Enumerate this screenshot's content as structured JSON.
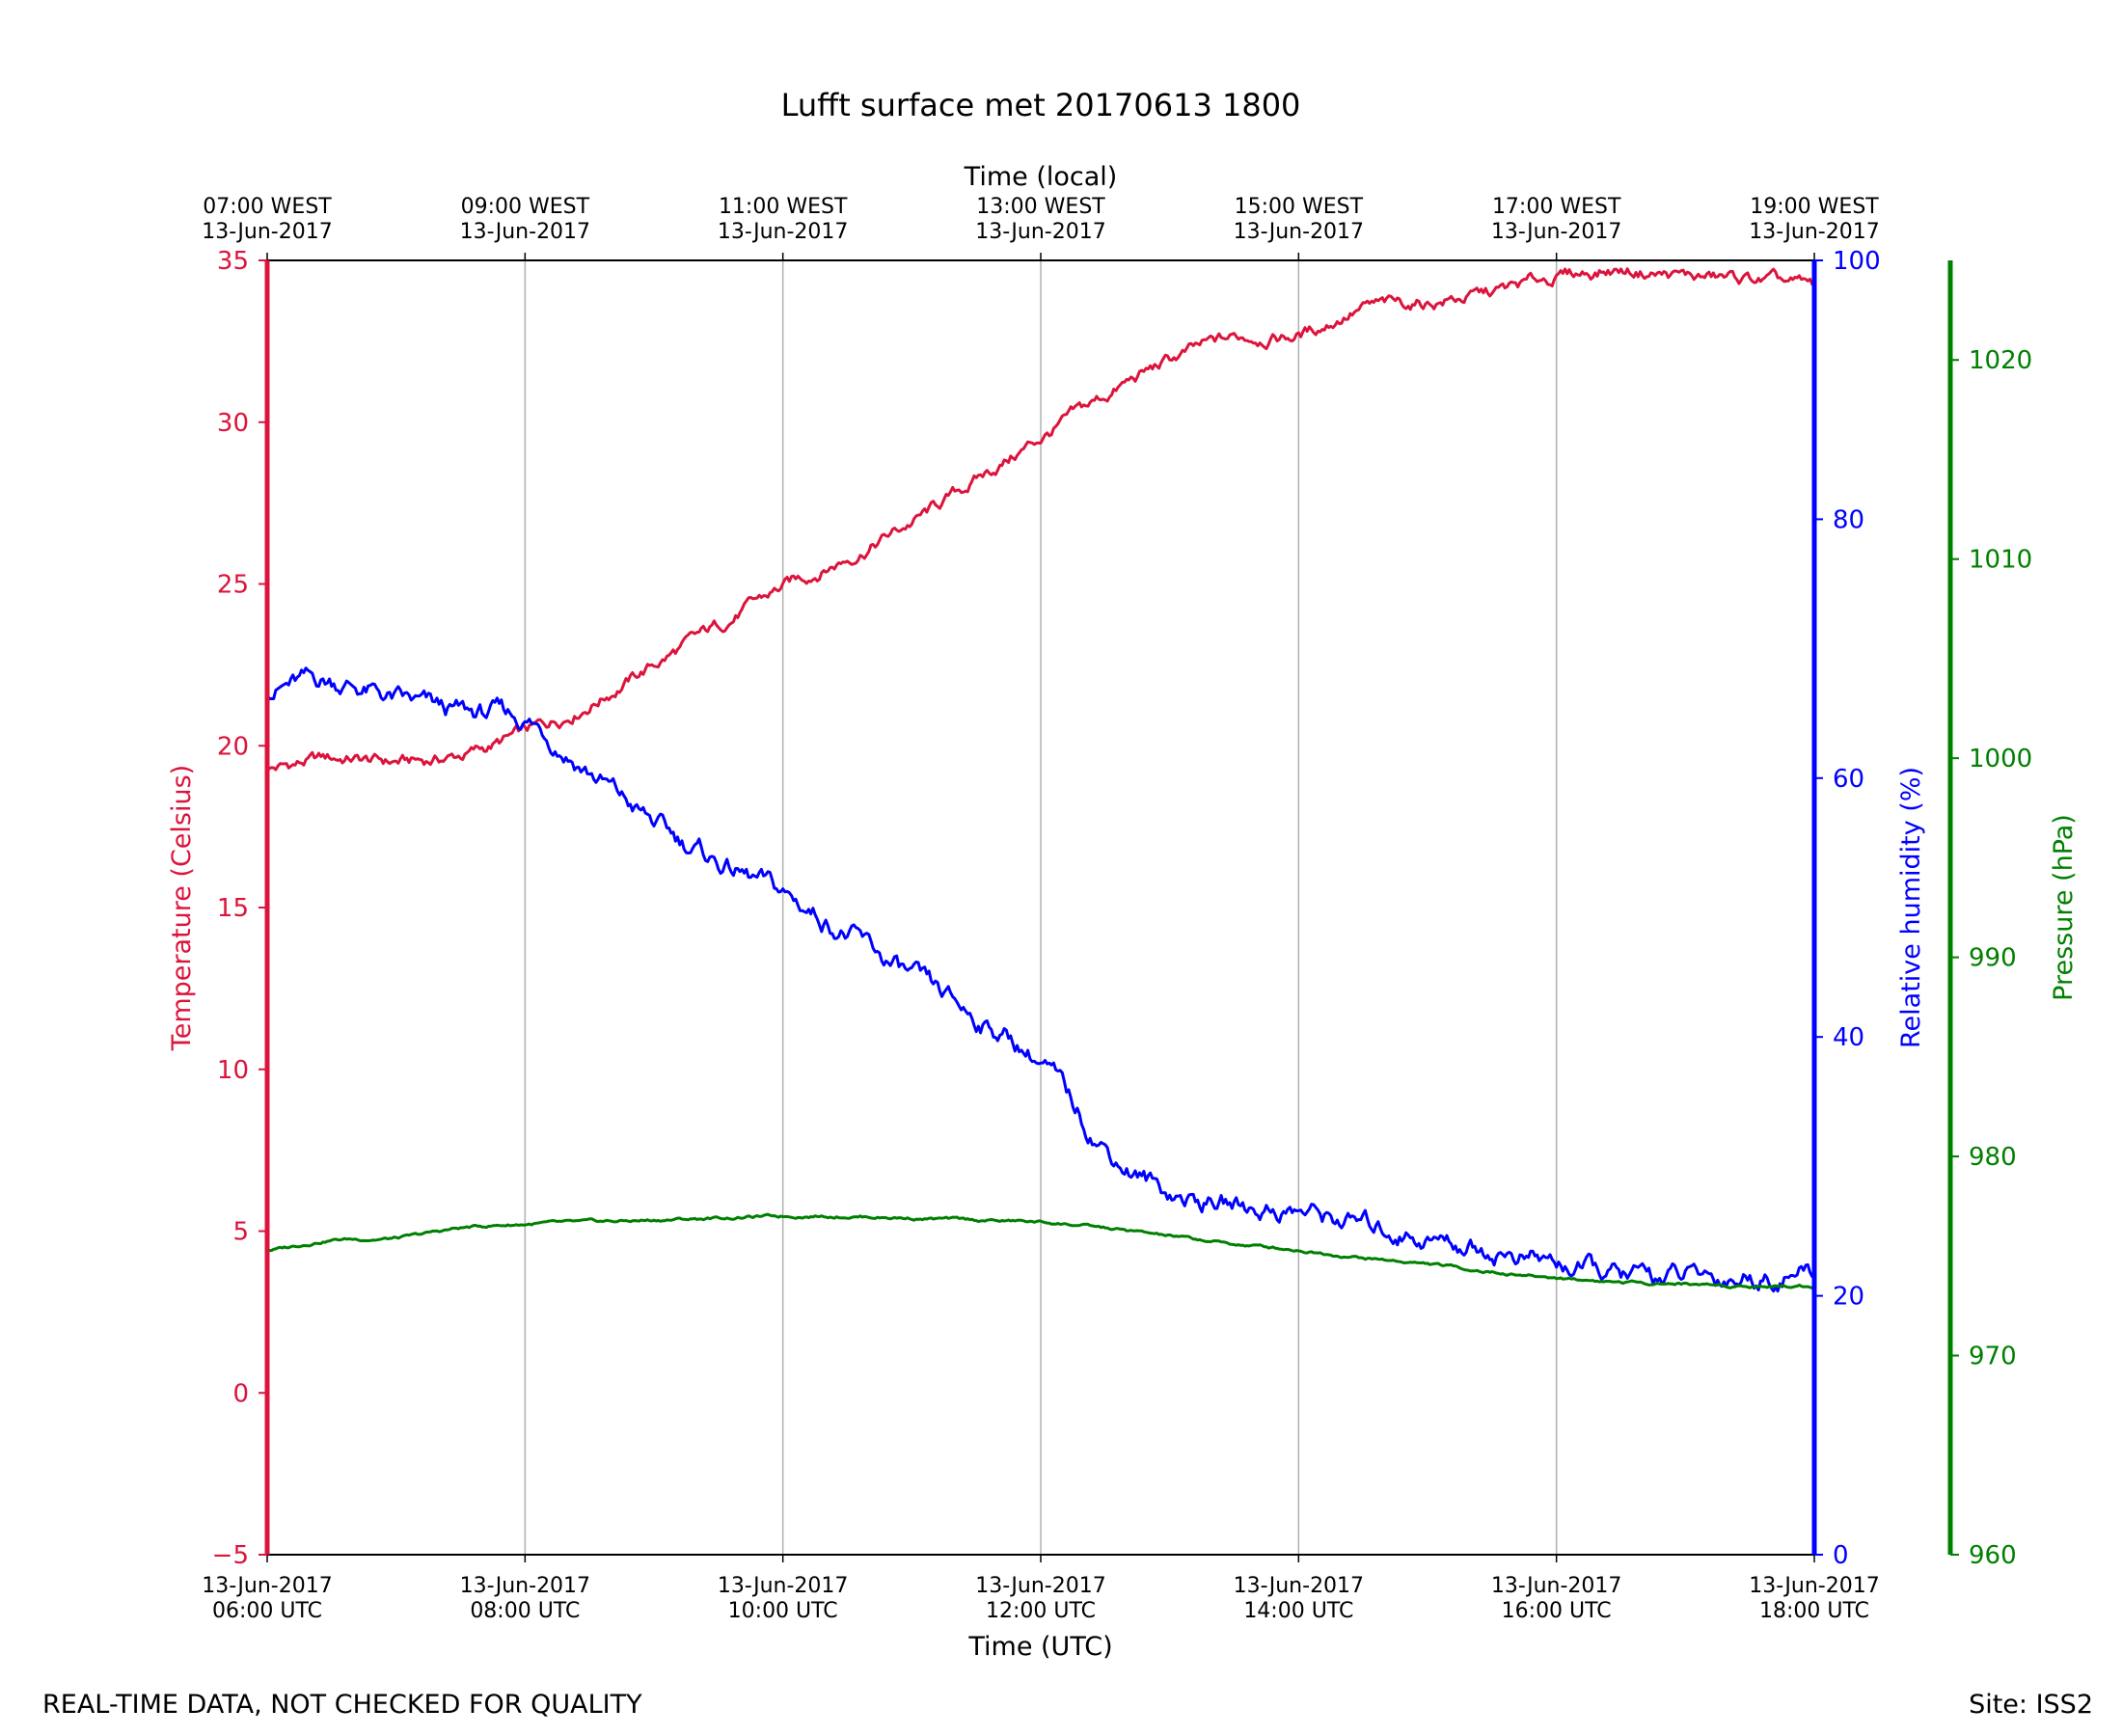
{
  "footer": {
    "left": "REAL-TIME DATA, NOT CHECKED FOR QUALITY",
    "right": "Site: ISS2"
  },
  "chart_data": {
    "type": "line",
    "title": "Lufft surface met 20170613 1800",
    "xlabel": "Time (UTC)",
    "x2label": "Time (local)",
    "x_ticks": [
      {
        "date": "13-Jun-2017",
        "utc": "06:00 UTC",
        "local": "07:00 WEST"
      },
      {
        "date": "13-Jun-2017",
        "utc": "08:00 UTC",
        "local": "09:00 WEST"
      },
      {
        "date": "13-Jun-2017",
        "utc": "10:00 UTC",
        "local": "11:00 WEST"
      },
      {
        "date": "13-Jun-2017",
        "utc": "12:00 UTC",
        "local": "13:00 WEST"
      },
      {
        "date": "13-Jun-2017",
        "utc": "14:00 UTC",
        "local": "15:00 WEST"
      },
      {
        "date": "13-Jun-2017",
        "utc": "16:00 UTC",
        "local": "17:00 WEST"
      },
      {
        "date": "13-Jun-2017",
        "utc": "18:00 UTC",
        "local": "19:00 WEST"
      }
    ],
    "xlim": [
      "2017-06-13 06:00 UTC",
      "2017-06-13 18:00 UTC"
    ],
    "x_grid": true,
    "axes": {
      "temperature": {
        "label": "Temperature (Celsius)",
        "range": [
          -5,
          35
        ],
        "ticks": [
          -5,
          0,
          5,
          10,
          15,
          20,
          25,
          30,
          35
        ],
        "color": "#DC143C",
        "side": "left"
      },
      "humidity": {
        "label": "Relative humidity (%)",
        "range": [
          0,
          100
        ],
        "ticks": [
          0,
          20,
          40,
          60,
          80,
          100
        ],
        "color": "#0000FF",
        "side": "right"
      },
      "pressure": {
        "label": "Pressure (hPa)",
        "range": [
          960,
          1025
        ],
        "ticks": [
          960,
          970,
          980,
          990,
          1000,
          1010,
          1020
        ],
        "color": "#008000",
        "side": "right-outer"
      }
    },
    "x": [
      "06:00",
      "06:30",
      "07:00",
      "07:30",
      "08:00",
      "08:30",
      "09:00",
      "09:30",
      "10:00",
      "10:30",
      "11:00",
      "11:30",
      "12:00",
      "12:30",
      "13:00",
      "13:30",
      "14:00",
      "14:30",
      "15:00",
      "15:30",
      "16:00",
      "16:30",
      "17:00",
      "17:30",
      "18:00"
    ],
    "series": [
      {
        "axis": "temperature",
        "color": "#DC143C",
        "values": [
          19.3,
          19.6,
          19.5,
          19.7,
          20.4,
          21.3,
          22.5,
          23.7,
          24.9,
          25.8,
          26.9,
          28.2,
          29.5,
          30.8,
          31.9,
          32.6,
          32.7,
          33.5,
          33.7,
          34.0,
          34.5,
          34.7,
          34.5,
          34.4,
          34.2
        ]
      },
      {
        "axis": "humidity",
        "color": "#0000FF",
        "values": [
          67.0,
          67.5,
          66.0,
          65.0,
          64.5,
          60.5,
          56.5,
          53.5,
          51.0,
          48.0,
          44.5,
          41.5,
          38.0,
          31.5,
          28.0,
          27.0,
          26.5,
          25.5,
          24.5,
          23.5,
          22.5,
          21.5,
          21.5,
          21.5,
          21.8
        ]
      },
      {
        "axis": "pressure",
        "color": "#008000",
        "values": [
          975.3,
          975.8,
          975.9,
          976.4,
          976.6,
          976.7,
          976.8,
          976.9,
          977.0,
          977.0,
          976.9,
          976.8,
          976.7,
          976.4,
          976.0,
          975.6,
          975.3,
          974.9,
          974.6,
          974.2,
          973.9,
          973.7,
          973.6,
          973.5,
          973.5
        ]
      }
    ]
  }
}
